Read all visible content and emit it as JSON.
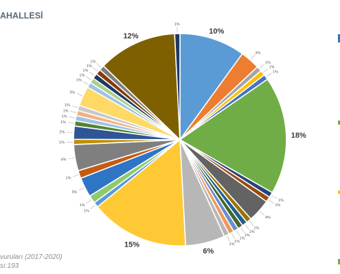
{
  "header": {
    "title": "AHALLESİ"
  },
  "footer": {
    "source_note": "vuruları (2017-2020)",
    "count_note": "sı:193"
  },
  "chart_data": {
    "type": "pie",
    "title": "",
    "slices": [
      {
        "label": "10%",
        "value": 10,
        "color": "#5b9bd5"
      },
      {
        "label": "3%",
        "value": 3,
        "color": "#ed7d31"
      },
      {
        "label": "1%",
        "value": 0.8,
        "color": "#a5a5a5"
      },
      {
        "label": "1%",
        "value": 0.8,
        "color": "#ffc000"
      },
      {
        "label": "1%",
        "value": 0.8,
        "color": "#4472c4"
      },
      {
        "label": "18%",
        "value": 18,
        "color": "#70ad47"
      },
      {
        "label": "1%",
        "value": 0.8,
        "color": "#264478"
      },
      {
        "label": "1%",
        "value": 0.8,
        "color": "#9e480e"
      },
      {
        "label": "4%",
        "value": 3.5,
        "color": "#636363"
      },
      {
        "label": "1%",
        "value": 0.8,
        "color": "#997300"
      },
      {
        "label": "1%",
        "value": 0.8,
        "color": "#255e91"
      },
      {
        "label": "1%",
        "value": 0.8,
        "color": "#43682b"
      },
      {
        "label": "1%",
        "value": 0.8,
        "color": "#698ed0"
      },
      {
        "label": "1%",
        "value": 0.8,
        "color": "#f1975a"
      },
      {
        "label": "1%",
        "value": 0.8,
        "color": "#b7b7b7"
      },
      {
        "label": "6%",
        "value": 6,
        "color": "#b7b7b7"
      },
      {
        "label": "15%",
        "value": 15,
        "color": "#ffc935"
      },
      {
        "label": "1%",
        "value": 0.8,
        "color": "#5b9bd5"
      },
      {
        "label": "1%",
        "value": 1.2,
        "color": "#8fca6c"
      },
      {
        "label": "3%",
        "value": 3,
        "color": "#2e75c5"
      },
      {
        "label": "1%",
        "value": 1.2,
        "color": "#c55a11"
      },
      {
        "label": "4%",
        "value": 4,
        "color": "#7f7f7f"
      },
      {
        "label": "1%",
        "value": 0.8,
        "color": "#bf9000"
      },
      {
        "label": "2%",
        "value": 2,
        "color": "#2f5597"
      },
      {
        "label": "1%",
        "value": 0.8,
        "color": "#548235"
      },
      {
        "label": "1%",
        "value": 0.8,
        "color": "#9dc3e6"
      },
      {
        "label": "1%",
        "value": 0.8,
        "color": "#f4b183"
      },
      {
        "label": "1%",
        "value": 0.8,
        "color": "#c9c9c9"
      },
      {
        "label": "3%",
        "value": 3,
        "color": "#ffd966"
      },
      {
        "label": "1%",
        "value": 0.8,
        "color": "#9dc3e6"
      },
      {
        "label": "1%",
        "value": 0.8,
        "color": "#a9d18e"
      },
      {
        "label": "1%",
        "value": 0.8,
        "color": "#1f3864"
      },
      {
        "label": "1%",
        "value": 0.8,
        "color": "#843c0c"
      },
      {
        "label": "1%",
        "value": 0.8,
        "color": "#7f7f7f"
      },
      {
        "label": "12%",
        "value": 12,
        "color": "#7f6000"
      },
      {
        "label": "1%",
        "value": 0.8,
        "color": "#1f3864"
      }
    ]
  },
  "edge_marks": [
    {
      "color": "#2e75b6"
    },
    {
      "color": "#70ad47"
    },
    {
      "color": "#ffc000"
    },
    {
      "color": "#70ad47"
    }
  ]
}
